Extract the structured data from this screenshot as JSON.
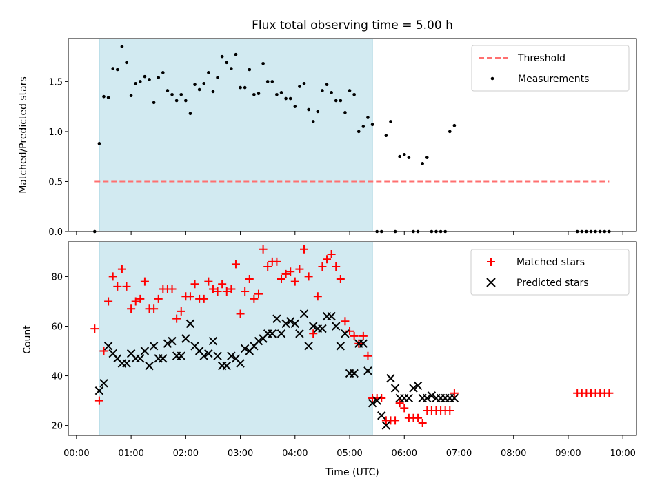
{
  "chart_data": [
    {
      "type": "scatter",
      "title": "Flux total observing time = 5.00 h",
      "xlabel": "",
      "ylabel": "Matched/Predicted stars",
      "ylim": [
        0.0,
        1.93
      ],
      "yticks": [
        0.0,
        0.5,
        1.0,
        1.5
      ],
      "yticklabels": [
        "0.0",
        "0.5",
        "1.0",
        "1.5"
      ],
      "shaded_span": {
        "start": "00:25",
        "end": "05:25",
        "color": "#add8e6"
      },
      "legend": {
        "location": "upper right",
        "entries": [
          "Threshold",
          "Measurements"
        ]
      },
      "series": [
        {
          "name": "Threshold",
          "style": "dashed-line",
          "color": "#ff7070",
          "x": [
            "00:20",
            "09:45"
          ],
          "y": [
            0.5,
            0.5
          ]
        },
        {
          "name": "Measurements",
          "style": "dot",
          "color": "#000000",
          "x": [
            "00:20",
            "00:25",
            "00:30",
            "00:35",
            "00:40",
            "00:45",
            "00:50",
            "00:55",
            "01:00",
            "01:05",
            "01:10",
            "01:15",
            "01:20",
            "01:25",
            "01:30",
            "01:35",
            "01:40",
            "01:45",
            "01:50",
            "01:55",
            "02:00",
            "02:05",
            "02:10",
            "02:15",
            "02:20",
            "02:25",
            "02:30",
            "02:35",
            "02:40",
            "02:45",
            "02:50",
            "02:55",
            "03:00",
            "03:05",
            "03:10",
            "03:15",
            "03:20",
            "03:25",
            "03:30",
            "03:35",
            "03:40",
            "03:45",
            "03:50",
            "03:55",
            "04:00",
            "04:05",
            "04:10",
            "04:15",
            "04:20",
            "04:25",
            "04:30",
            "04:35",
            "04:40",
            "04:45",
            "04:50",
            "04:55",
            "05:00",
            "05:05",
            "05:10",
            "05:15",
            "05:20",
            "05:25",
            "05:30",
            "05:35",
            "05:40",
            "05:45",
            "05:50",
            "05:55",
            "06:00",
            "06:05",
            "06:10",
            "06:15",
            "06:20",
            "06:25",
            "06:30",
            "06:35",
            "06:40",
            "06:45",
            "06:50",
            "06:55",
            "09:10",
            "09:15",
            "09:20",
            "09:25",
            "09:30",
            "09:35",
            "09:40",
            "09:45"
          ],
          "y": [
            0.0,
            0.88,
            1.35,
            1.34,
            1.63,
            1.62,
            1.85,
            1.69,
            1.36,
            1.48,
            1.5,
            1.55,
            1.52,
            1.29,
            1.54,
            1.59,
            1.41,
            1.37,
            1.31,
            1.37,
            1.31,
            1.18,
            1.47,
            1.42,
            1.48,
            1.59,
            1.4,
            1.54,
            1.75,
            1.69,
            1.63,
            1.77,
            1.44,
            1.44,
            1.62,
            1.37,
            1.38,
            1.68,
            1.5,
            1.5,
            1.37,
            1.39,
            1.33,
            1.33,
            1.25,
            1.45,
            1.48,
            1.22,
            1.1,
            1.2,
            1.41,
            1.47,
            1.39,
            1.31,
            1.31,
            1.19,
            1.41,
            1.37,
            1.0,
            1.05,
            1.14,
            1.07,
            0.0,
            0.0,
            0.96,
            1.1,
            0.0,
            0.75,
            0.77,
            0.74,
            0.0,
            0.0,
            0.68,
            0.74,
            0.0,
            0.0,
            0.0,
            0.0,
            1.0,
            1.06,
            0.0,
            0.0,
            0.0,
            0.0,
            0.0,
            0.0,
            0.0,
            0.0
          ]
        }
      ]
    },
    {
      "type": "scatter",
      "title": "",
      "xlabel": "Time (UTC)",
      "ylabel": "Count",
      "ylim": [
        16,
        94
      ],
      "yticks": [
        20,
        40,
        60,
        80
      ],
      "yticklabels": [
        "20",
        "40",
        "60",
        "80"
      ],
      "xticklabels": [
        "00:00",
        "01:00",
        "02:00",
        "03:00",
        "04:00",
        "05:00",
        "06:00",
        "07:00",
        "08:00",
        "09:00",
        "10:00"
      ],
      "shaded_span": {
        "start": "00:25",
        "end": "05:25",
        "color": "#add8e6"
      },
      "legend": {
        "location": "upper right",
        "entries": [
          "Matched stars",
          "Predicted stars"
        ]
      },
      "series": [
        {
          "name": "Matched stars",
          "style": "plus",
          "color": "#ff0000",
          "x": [
            "00:20",
            "00:25",
            "00:30",
            "00:35",
            "00:40",
            "00:45",
            "00:50",
            "00:55",
            "01:00",
            "01:05",
            "01:10",
            "01:15",
            "01:20",
            "01:25",
            "01:30",
            "01:35",
            "01:40",
            "01:45",
            "01:50",
            "01:55",
            "02:00",
            "02:05",
            "02:10",
            "02:15",
            "02:20",
            "02:25",
            "02:30",
            "02:35",
            "02:40",
            "02:45",
            "02:50",
            "02:55",
            "03:00",
            "03:05",
            "03:10",
            "03:15",
            "03:20",
            "03:25",
            "03:30",
            "03:35",
            "03:40",
            "03:45",
            "03:50",
            "03:55",
            "04:00",
            "04:05",
            "04:10",
            "04:15",
            "04:20",
            "04:25",
            "04:30",
            "04:35",
            "04:40",
            "04:45",
            "04:50",
            "04:55",
            "05:00",
            "05:05",
            "05:10",
            "05:15",
            "05:20",
            "05:25",
            "05:30",
            "05:35",
            "05:40",
            "05:45",
            "05:50",
            "05:55",
            "06:00",
            "06:05",
            "06:10",
            "06:15",
            "06:20",
            "06:25",
            "06:30",
            "06:35",
            "06:40",
            "06:45",
            "06:50",
            "06:55",
            "09:10",
            "09:15",
            "09:20",
            "09:25",
            "09:30",
            "09:35",
            "09:40",
            "09:45"
          ],
          "y": [
            59,
            30,
            50,
            70,
            80,
            76,
            83,
            76,
            67,
            70,
            71,
            78,
            67,
            67,
            71,
            75,
            75,
            75,
            63,
            66,
            72,
            72,
            77,
            71,
            71,
            78,
            75,
            74,
            77,
            74,
            75,
            85,
            65,
            74,
            79,
            71,
            73,
            91,
            84,
            86,
            86,
            79,
            81,
            82,
            78,
            83,
            91,
            80,
            57,
            72,
            84,
            87,
            89,
            84,
            79,
            62,
            58,
            56,
            53,
            56,
            48,
            31,
            31,
            31,
            22,
            22,
            22,
            29,
            27,
            23,
            23,
            23,
            21,
            26,
            26,
            26,
            26,
            26,
            26,
            33,
            33,
            33,
            33,
            33,
            33,
            33,
            33,
            33
          ]
        },
        {
          "name": "Predicted stars",
          "style": "x",
          "color": "#000000",
          "x": [
            "00:25",
            "00:30",
            "00:35",
            "00:40",
            "00:45",
            "00:50",
            "00:55",
            "01:00",
            "01:05",
            "01:10",
            "01:15",
            "01:20",
            "01:25",
            "01:30",
            "01:35",
            "01:40",
            "01:45",
            "01:50",
            "01:55",
            "02:00",
            "02:05",
            "02:10",
            "02:15",
            "02:20",
            "02:25",
            "02:30",
            "02:35",
            "02:40",
            "02:45",
            "02:50",
            "02:55",
            "03:00",
            "03:05",
            "03:10",
            "03:15",
            "03:20",
            "03:25",
            "03:30",
            "03:35",
            "03:40",
            "03:45",
            "03:50",
            "03:55",
            "04:00",
            "04:05",
            "04:10",
            "04:15",
            "04:20",
            "04:25",
            "04:30",
            "04:35",
            "04:40",
            "04:45",
            "04:50",
            "04:55",
            "05:00",
            "05:05",
            "05:10",
            "05:15",
            "05:20",
            "05:25",
            "05:30",
            "05:35",
            "05:40",
            "05:45",
            "05:50",
            "05:55",
            "06:00",
            "06:05",
            "06:10",
            "06:15",
            "06:20",
            "06:25",
            "06:30",
            "06:35",
            "06:40",
            "06:45",
            "06:50",
            "06:55"
          ],
          "y": [
            34,
            37,
            52,
            49,
            47,
            45,
            45,
            49,
            47,
            47,
            50,
            44,
            52,
            47,
            47,
            53,
            54,
            48,
            48,
            55,
            61,
            52,
            50,
            48,
            49,
            54,
            48,
            44,
            44,
            48,
            47,
            45,
            51,
            50,
            52,
            54,
            55,
            57,
            57,
            63,
            57,
            61,
            62,
            61,
            57,
            65,
            52,
            60,
            59,
            59,
            64,
            64,
            60,
            52,
            57,
            41,
            41,
            53,
            53,
            42,
            29,
            30,
            24,
            20,
            39,
            35,
            31,
            31,
            31,
            35,
            36,
            31,
            31,
            32,
            31,
            31,
            31,
            31,
            31
          ]
        }
      ]
    }
  ]
}
